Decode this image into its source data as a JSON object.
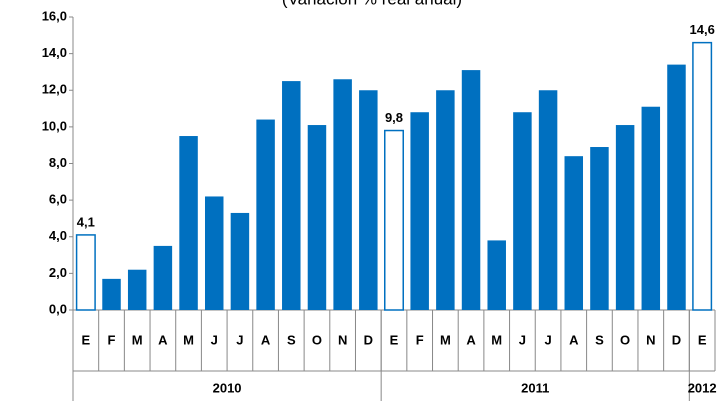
{
  "chart_data": {
    "type": "bar",
    "subtitle": "(Variación % real anual)",
    "categories": [
      "E",
      "F",
      "M",
      "A",
      "M",
      "J",
      "J",
      "A",
      "S",
      "O",
      "N",
      "D",
      "E",
      "F",
      "M",
      "A",
      "M",
      "J",
      "J",
      "A",
      "S",
      "O",
      "N",
      "D",
      "E"
    ],
    "values": [
      4.1,
      1.7,
      2.2,
      3.5,
      9.5,
      6.2,
      5.3,
      10.4,
      12.5,
      10.1,
      12.6,
      12.0,
      9.8,
      10.8,
      12.0,
      13.1,
      3.8,
      10.8,
      12.0,
      8.4,
      8.9,
      10.1,
      11.1,
      13.4,
      14.6
    ],
    "value_labels": [
      "4,1",
      null,
      null,
      null,
      null,
      null,
      null,
      null,
      null,
      null,
      null,
      null,
      "9,8",
      null,
      null,
      null,
      null,
      null,
      null,
      null,
      null,
      null,
      null,
      null,
      "14,6"
    ],
    "color": "#0070c0",
    "outline_bars": [
      0,
      12,
      24
    ],
    "groups": [
      {
        "label": "2010",
        "start": 0,
        "end": 11
      },
      {
        "label": "2011",
        "start": 12,
        "end": 23
      },
      {
        "label": "2012",
        "start": 24,
        "end": 24
      }
    ],
    "ylim": [
      0,
      16
    ],
    "yticks": [
      {
        "value": 0,
        "label": "0,0"
      },
      {
        "value": 2,
        "label": "2,0"
      },
      {
        "value": 4,
        "label": "4,0"
      },
      {
        "value": 6,
        "label": "6,0"
      },
      {
        "value": 8,
        "label": "8,0"
      },
      {
        "value": 10,
        "label": "10,0"
      },
      {
        "value": 12,
        "label": "12,0"
      },
      {
        "value": 14,
        "label": "14,0"
      },
      {
        "value": 16,
        "label": "16,0"
      }
    ]
  }
}
